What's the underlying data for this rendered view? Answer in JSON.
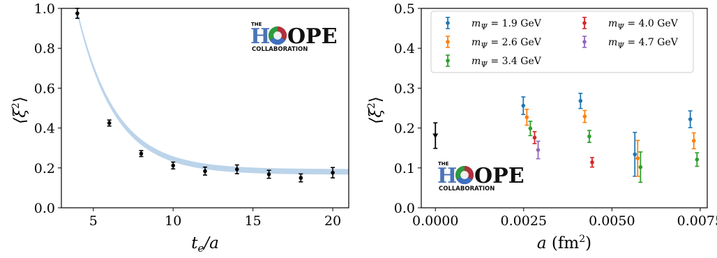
{
  "chart_data": [
    {
      "type": "scatter",
      "title": "",
      "xlabel": "t_e/a",
      "ylabel": "⟨ξ²⟩",
      "xlim": [
        3,
        21
      ],
      "ylim": [
        0.0,
        1.0
      ],
      "xticks": [
        "5",
        "10",
        "15",
        "20"
      ],
      "yticks": [
        "0.0",
        "0.2",
        "0.4",
        "0.6",
        "0.8",
        "1.0"
      ],
      "logo": {
        "the": "THE",
        "h": "H",
        "ope": "OPE",
        "collab": "COLLABORATION"
      },
      "points": [
        {
          "x": 4,
          "y": 0.975,
          "err": 0.025
        },
        {
          "x": 6,
          "y": 0.425,
          "err": 0.015
        },
        {
          "x": 8,
          "y": 0.272,
          "err": 0.015
        },
        {
          "x": 10,
          "y": 0.212,
          "err": 0.017
        },
        {
          "x": 12,
          "y": 0.184,
          "err": 0.02
        },
        {
          "x": 14,
          "y": 0.193,
          "err": 0.022
        },
        {
          "x": 16,
          "y": 0.168,
          "err": 0.02
        },
        {
          "x": 18,
          "y": 0.15,
          "err": 0.02
        },
        {
          "x": 20,
          "y": 0.176,
          "err": 0.026
        }
      ],
      "fit": {
        "type": "exponential",
        "y_inf": 0.18,
        "amplitude": 0.8,
        "decay": 0.42,
        "x0": 4,
        "band": 0.014,
        "color": "#bcd4ea"
      }
    },
    {
      "type": "scatter",
      "title": "",
      "xlabel": "a (fm²)",
      "ylabel": "⟨ξ²⟩",
      "xlim": [
        -0.0004,
        0.0077
      ],
      "ylim": [
        0.0,
        0.5
      ],
      "xticks": [
        {
          "v": 0.0,
          "label": "0.0000"
        },
        {
          "v": 0.0025,
          "label": "0.0025"
        },
        {
          "v": 0.005,
          "label": "0.0050"
        },
        {
          "v": 0.0075,
          "label": "0.0075"
        }
      ],
      "yticks": [
        "0.0",
        "0.1",
        "0.2",
        "0.3",
        "0.4",
        "0.5"
      ],
      "legend_position": "top",
      "logo": {
        "the": "THE",
        "h": "H",
        "ope": "OPE",
        "collab": "COLLABORATION"
      },
      "extrapolated": {
        "x": 0.0,
        "y": 0.181,
        "err": 0.032,
        "color": "#000000"
      },
      "series": [
        {
          "name": "m_Ψ = 1.9 GeV",
          "color": "#1f77b4",
          "points": [
            {
              "x": 0.00249,
              "y": 0.256,
              "err": 0.022
            },
            {
              "x": 0.00411,
              "y": 0.268,
              "err": 0.019
            },
            {
              "x": 0.00565,
              "y": 0.134,
              "err": 0.055
            },
            {
              "x": 0.00722,
              "y": 0.222,
              "err": 0.021
            }
          ]
        },
        {
          "name": "m_Ψ = 2.6 GeV",
          "color": "#ff7f0e",
          "points": [
            {
              "x": 0.00259,
              "y": 0.227,
              "err": 0.02
            },
            {
              "x": 0.00423,
              "y": 0.229,
              "err": 0.015
            },
            {
              "x": 0.00573,
              "y": 0.124,
              "err": 0.045
            },
            {
              "x": 0.00732,
              "y": 0.168,
              "err": 0.02
            }
          ]
        },
        {
          "name": "m_Ψ = 3.4 GeV",
          "color": "#2ca02c",
          "points": [
            {
              "x": 0.00269,
              "y": 0.199,
              "err": 0.018
            },
            {
              "x": 0.00436,
              "y": 0.179,
              "err": 0.015
            },
            {
              "x": 0.00581,
              "y": 0.102,
              "err": 0.038
            },
            {
              "x": 0.00741,
              "y": 0.121,
              "err": 0.017
            }
          ]
        },
        {
          "name": "m_Ψ = 4.0 GeV",
          "color": "#d62728",
          "points": [
            {
              "x": 0.00281,
              "y": 0.176,
              "err": 0.015
            },
            {
              "x": 0.00444,
              "y": 0.114,
              "err": 0.012
            }
          ]
        },
        {
          "name": "m_Ψ = 4.7 GeV",
          "color": "#9467bd",
          "points": [
            {
              "x": 0.00291,
              "y": 0.145,
              "err": 0.022
            }
          ]
        }
      ]
    }
  ]
}
